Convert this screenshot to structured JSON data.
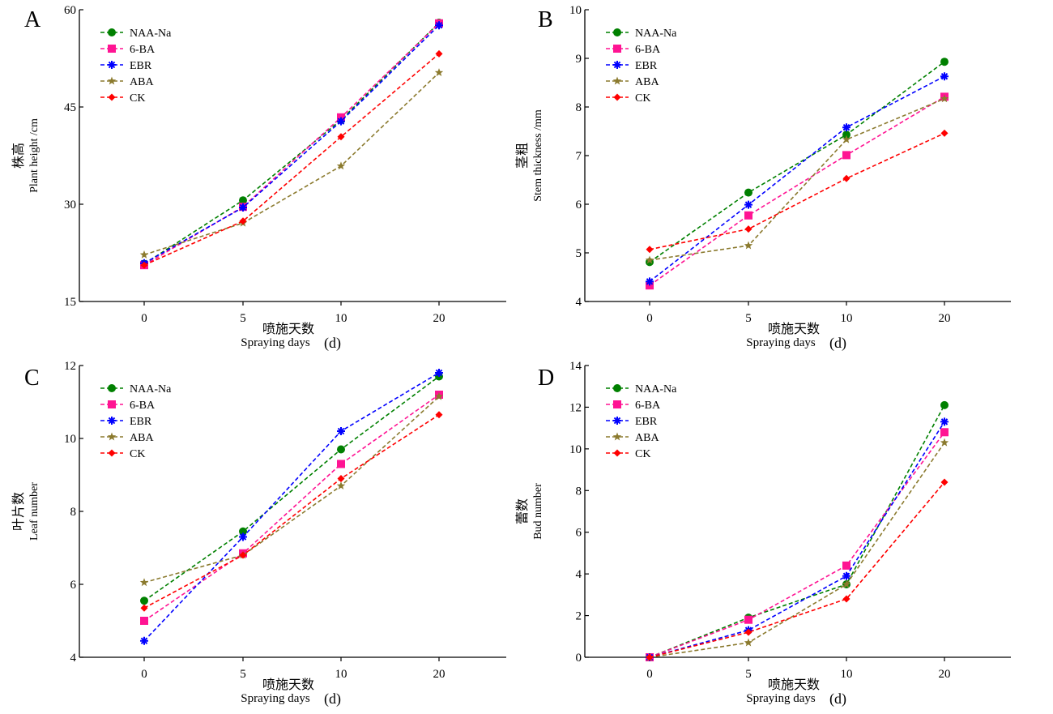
{
  "chart_data": [
    {
      "panel_letter": "A",
      "type": "line",
      "x": [
        0,
        5,
        10,
        20
      ],
      "xticklabels": [
        "0",
        "5",
        "10",
        "20"
      ],
      "xlabel_cn": "喷施天数",
      "xlabel_en": "Spraying days",
      "xlabel_unit": "(d)",
      "ylabel_cn": "株高",
      "ylabel_en": "Plant height /cm",
      "ylim": [
        15,
        60
      ],
      "yticks": [
        15,
        30,
        45,
        60
      ],
      "legend_position": "top-left",
      "series": [
        {
          "name": "NAA-Na",
          "color": "#008000",
          "marker": "circle",
          "values": [
            20.8,
            30.6,
            43.0,
            58.0
          ]
        },
        {
          "name": "6-BA",
          "color": "#ff1493",
          "marker": "square",
          "values": [
            20.6,
            29.6,
            43.4,
            57.9
          ]
        },
        {
          "name": "EBR",
          "color": "#0000ff",
          "marker": "asterisk",
          "values": [
            20.9,
            29.5,
            42.8,
            57.6
          ]
        },
        {
          "name": "ABA",
          "color": "#8b7a2e",
          "marker": "star",
          "values": [
            22.2,
            27.1,
            35.9,
            50.3
          ]
        },
        {
          "name": "CK",
          "color": "#ff0000",
          "marker": "diamond",
          "values": [
            20.6,
            27.4,
            40.4,
            53.2
          ]
        }
      ]
    },
    {
      "panel_letter": "B",
      "type": "line",
      "x": [
        0,
        5,
        10,
        20
      ],
      "xticklabels": [
        "0",
        "5",
        "10",
        "20"
      ],
      "xlabel_cn": "喷施天数",
      "xlabel_en": "Spraying days",
      "xlabel_unit": "(d)",
      "ylabel_cn": "茎粗",
      "ylabel_en": "Stem thickness /mm",
      "ylim": [
        4,
        10
      ],
      "yticks": [
        4,
        5,
        6,
        7,
        8,
        9,
        10
      ],
      "legend_position": "top-left",
      "series": [
        {
          "name": "NAA-Na",
          "color": "#008000",
          "marker": "circle",
          "values": [
            4.81,
            6.24,
            7.43,
            8.93
          ]
        },
        {
          "name": "6-BA",
          "color": "#ff1493",
          "marker": "square",
          "values": [
            4.33,
            5.77,
            7.01,
            8.21
          ]
        },
        {
          "name": "EBR",
          "color": "#0000ff",
          "marker": "asterisk",
          "values": [
            4.41,
            5.99,
            7.58,
            8.63
          ]
        },
        {
          "name": "ABA",
          "color": "#8b7a2e",
          "marker": "star",
          "values": [
            4.85,
            5.15,
            7.33,
            8.17
          ]
        },
        {
          "name": "CK",
          "color": "#ff0000",
          "marker": "diamond",
          "values": [
            5.07,
            5.49,
            6.53,
            7.46
          ]
        }
      ]
    },
    {
      "panel_letter": "C",
      "type": "line",
      "x": [
        0,
        5,
        10,
        20
      ],
      "xticklabels": [
        "0",
        "5",
        "10",
        "20"
      ],
      "xlabel_cn": "喷施天数",
      "xlabel_en": "Spraying days",
      "xlabel_unit": "(d)",
      "ylabel_cn": "叶片数",
      "ylabel_en": "Leaf number",
      "ylim": [
        4,
        12
      ],
      "yticks": [
        4,
        6,
        8,
        10,
        12
      ],
      "legend_position": "top-left",
      "series": [
        {
          "name": "NAA-Na",
          "color": "#008000",
          "marker": "circle",
          "values": [
            5.55,
            7.45,
            9.7,
            11.7
          ]
        },
        {
          "name": "6-BA",
          "color": "#ff1493",
          "marker": "square",
          "values": [
            5.0,
            6.85,
            9.3,
            11.2
          ]
        },
        {
          "name": "EBR",
          "color": "#0000ff",
          "marker": "asterisk",
          "values": [
            4.45,
            7.3,
            10.2,
            11.8
          ]
        },
        {
          "name": "ABA",
          "color": "#8b7a2e",
          "marker": "star",
          "values": [
            6.05,
            6.8,
            8.7,
            11.15
          ]
        },
        {
          "name": "CK",
          "color": "#ff0000",
          "marker": "diamond",
          "values": [
            5.35,
            6.8,
            8.9,
            10.65
          ]
        }
      ]
    },
    {
      "panel_letter": "D",
      "type": "line",
      "x": [
        0,
        5,
        10,
        20
      ],
      "xticklabels": [
        "0",
        "5",
        "10",
        "20"
      ],
      "xlabel_cn": "喷施天数",
      "xlabel_en": "Spraying days",
      "xlabel_unit": "(d)",
      "ylabel_cn": "蕾数",
      "ylabel_en": "Bud number",
      "ylim": [
        0,
        14
      ],
      "yticks": [
        0,
        2,
        4,
        6,
        8,
        10,
        12,
        14
      ],
      "legend_position": "top-left",
      "series": [
        {
          "name": "NAA-Na",
          "color": "#008000",
          "marker": "circle",
          "values": [
            0,
            1.9,
            3.5,
            12.1
          ]
        },
        {
          "name": "6-BA",
          "color": "#ff1493",
          "marker": "square",
          "values": [
            0,
            1.8,
            4.4,
            10.8
          ]
        },
        {
          "name": "EBR",
          "color": "#0000ff",
          "marker": "asterisk",
          "values": [
            0,
            1.3,
            3.9,
            11.3
          ]
        },
        {
          "name": "ABA",
          "color": "#8b7a2e",
          "marker": "star",
          "values": [
            0,
            0.7,
            3.5,
            10.3
          ]
        },
        {
          "name": "CK",
          "color": "#ff0000",
          "marker": "diamond",
          "values": [
            0,
            1.2,
            2.8,
            8.4
          ]
        }
      ]
    }
  ]
}
